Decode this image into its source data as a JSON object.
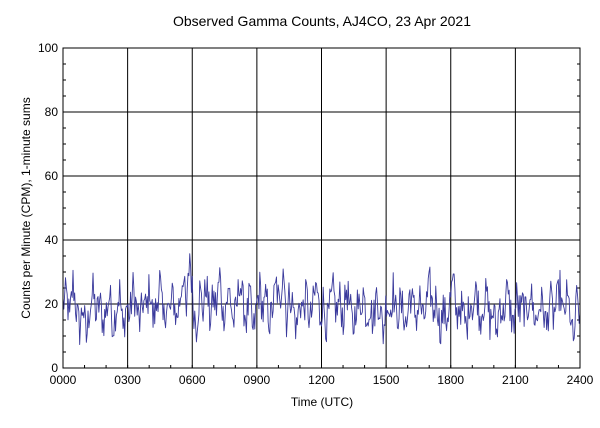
{
  "chart_data": {
    "type": "line",
    "title": "Observed Gamma Counts, AJ4CO, 23 Apr 2021",
    "xlabel": "Time (UTC)",
    "ylabel": "Counts per Minute (CPM), 1-minute sums",
    "x_range_minutes": [
      0,
      1440
    ],
    "ylim": [
      0,
      100
    ],
    "x_ticks": [
      {
        "minute": 0,
        "label": "0000"
      },
      {
        "minute": 180,
        "label": "0300"
      },
      {
        "minute": 360,
        "label": "0600"
      },
      {
        "minute": 540,
        "label": "0900"
      },
      {
        "minute": 720,
        "label": "1200"
      },
      {
        "minute": 900,
        "label": "1500"
      },
      {
        "minute": 1080,
        "label": "1800"
      },
      {
        "minute": 1260,
        "label": "2100"
      },
      {
        "minute": 1440,
        "label": "2400"
      }
    ],
    "y_ticks": [
      0,
      20,
      40,
      60,
      80,
      100
    ],
    "grid": true,
    "colors": {
      "series": "#3a3a9c",
      "grid": "#000000",
      "frame": "#000000"
    },
    "series": [
      {
        "values_every_10_min": [
          20,
          23,
          15,
          27,
          18,
          12,
          20,
          9,
          19,
          24,
          16,
          21,
          14,
          18,
          23,
          13,
          19,
          24,
          11,
          20,
          16,
          25,
          19,
          14,
          21,
          18,
          26,
          15,
          19,
          28,
          14,
          20,
          17,
          23,
          15,
          21,
          30,
          16,
          36,
          20,
          13,
          24,
          18,
          27,
          15,
          22,
          19,
          29,
          16,
          21,
          24,
          14,
          18,
          28,
          20,
          15,
          23,
          10,
          19,
          25,
          17,
          22,
          14,
          20,
          26,
          18,
          34,
          15,
          24,
          19,
          12,
          21,
          18,
          23,
          14,
          20,
          26,
          16,
          21,
          13,
          19,
          24,
          17,
          22,
          15,
          25,
          19,
          12,
          21,
          18,
          24,
          16,
          20,
          14,
          23,
          19,
          11,
          22,
          17,
          25,
          15,
          20,
          18,
          13,
          24,
          19,
          16,
          22,
          14,
          20,
          26,
          17,
          23,
          12,
          18,
          15,
          21,
          27,
          16,
          20,
          17,
          12,
          22,
          19,
          25,
          15,
          20,
          23,
          14,
          18,
          11,
          21,
          16,
          24,
          19,
          13,
          22,
          17,
          20,
          15,
          25,
          18,
          14,
          21,
          19,
          12,
          23,
          16,
          20,
          25,
          15,
          22,
          18,
          7,
          21,
          17
        ]
      }
    ]
  }
}
